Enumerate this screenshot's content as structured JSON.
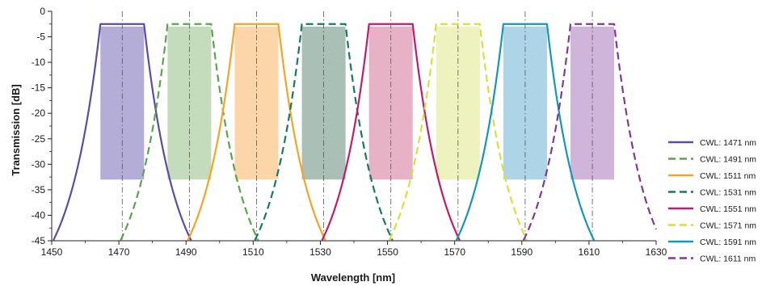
{
  "chart_data": {
    "type": "line",
    "title": "",
    "xlabel": "Wavelength [nm]",
    "ylabel": "Transmission [dB]",
    "xlim": [
      1450,
      1630
    ],
    "ylim": [
      -45,
      0
    ],
    "x_ticks": [
      1450,
      1470,
      1490,
      1510,
      1530,
      1550,
      1570,
      1590,
      1610,
      1630
    ],
    "y_ticks": [
      0,
      -5,
      -10,
      -15,
      -20,
      -25,
      -30,
      -35,
      -40,
      -45
    ],
    "grid": "vertical dash-dot line at each center wavelength",
    "legend_position": "right",
    "passband": {
      "half_width_nm": 6.5,
      "insertion_loss_db": -2.5
    },
    "shaded_band": {
      "half_width_nm": 6.5,
      "top_db": -3,
      "bottom_db": -33
    },
    "series": [
      {
        "name": "CWL: 1471 nm",
        "center": 1471,
        "color": "#5b4da3",
        "dashed": false,
        "fill": "#b4add8"
      },
      {
        "name": "CWL: 1491 nm",
        "center": 1491,
        "color": "#5aa54c",
        "dashed": true,
        "fill": "#c5dcbc"
      },
      {
        "name": "CWL: 1511 nm",
        "center": 1511,
        "color": "#f5a523",
        "dashed": false,
        "fill": "#fcd6a8"
      },
      {
        "name": "CWL: 1531 nm",
        "center": 1531,
        "color": "#157a60",
        "dashed": true,
        "fill": "#aac0b6"
      },
      {
        "name": "CWL: 1551 nm",
        "center": 1551,
        "color": "#c21b6c",
        "dashed": false,
        "fill": "#e8b2c6"
      },
      {
        "name": "CWL: 1571 nm",
        "center": 1571,
        "color": "#d9df3c",
        "dashed": true,
        "fill": "#eef2be"
      },
      {
        "name": "CWL: 1591 nm",
        "center": 1591,
        "color": "#1597b5",
        "dashed": false,
        "fill": "#aed5e7"
      },
      {
        "name": "CWL: 1611 nm",
        "center": 1611,
        "color": "#7f3a97",
        "dashed": true,
        "fill": "#cfb5da"
      }
    ]
  }
}
